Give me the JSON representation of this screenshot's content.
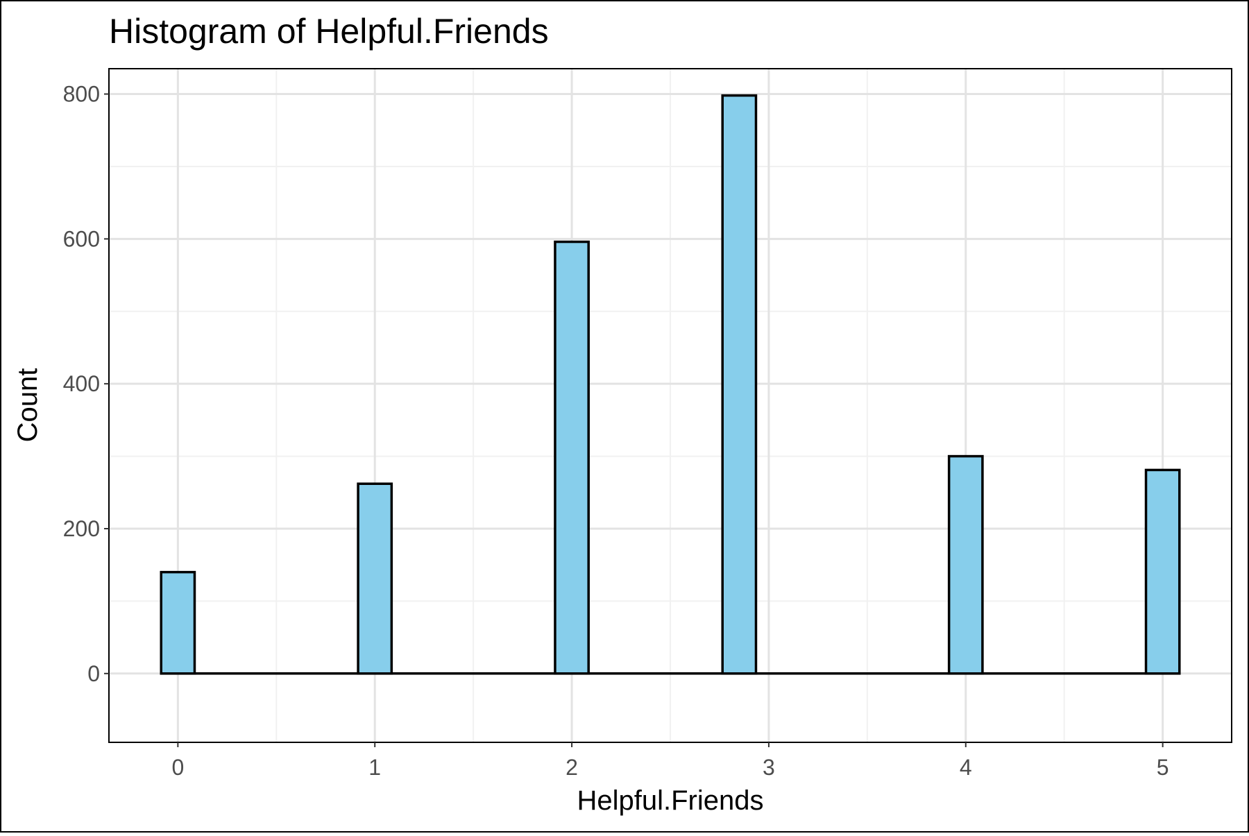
{
  "chart_data": {
    "type": "bar",
    "title": "Histogram of Helpful.Friends",
    "xlabel": "Helpful.Friends",
    "ylabel": "Count",
    "x_ticks": [
      "0",
      "1",
      "2",
      "3",
      "4",
      "5"
    ],
    "y_ticks": [
      "0",
      "200",
      "400",
      "600",
      "800"
    ],
    "xlim": [
      -0.35,
      5.35
    ],
    "ylim": [
      -95,
      835
    ],
    "bins": [
      {
        "x": 0,
        "value": 140
      },
      {
        "x": 1,
        "value": 262
      },
      {
        "x": 2,
        "value": 596
      },
      {
        "x": 2.85,
        "value": 798
      },
      {
        "x": 4,
        "value": 300
      },
      {
        "x": 5,
        "value": 281
      }
    ],
    "bin_width": 0.17,
    "grid": true,
    "colors": {
      "bar_fill": "#87CEEB",
      "bar_stroke": "#000000",
      "grid_major": "#e3e3e3",
      "grid_minor": "#f1f1f1",
      "panel_border": "#000000"
    }
  }
}
